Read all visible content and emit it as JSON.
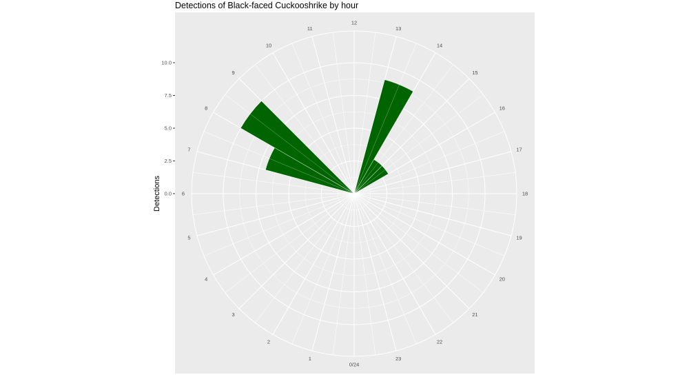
{
  "chart_data": {
    "type": "bar",
    "polar": true,
    "title": "Detections of Black-faced Cuckooshrike by hour",
    "xlabel": "",
    "ylabel": "Detections",
    "hour_labels": [
      "0/24",
      "1",
      "2",
      "3",
      "4",
      "5",
      "6",
      "7",
      "8",
      "9",
      "10",
      "11",
      "12",
      "13",
      "14",
      "15",
      "16",
      "17",
      "18",
      "19",
      "20",
      "21",
      "22",
      "23"
    ],
    "y_ticks": [
      "0.0",
      "2.5",
      "5.0",
      "7.5",
      "10.0"
    ],
    "ylim": [
      0,
      12.5
    ],
    "grid": true,
    "series": [
      {
        "color": "#006400",
        "bars": [
          {
            "hour": 7,
            "value": 7
          },
          {
            "hour": 8,
            "value": 10
          },
          {
            "hour": 13,
            "value": 9
          },
          {
            "hour": 14,
            "value": 3
          },
          {
            "hour": 15,
            "value": 3
          }
        ]
      }
    ]
  },
  "colors": {
    "panel_background": "#ebebeb",
    "grid": "#ffffff",
    "bar_fill": "#006400"
  }
}
